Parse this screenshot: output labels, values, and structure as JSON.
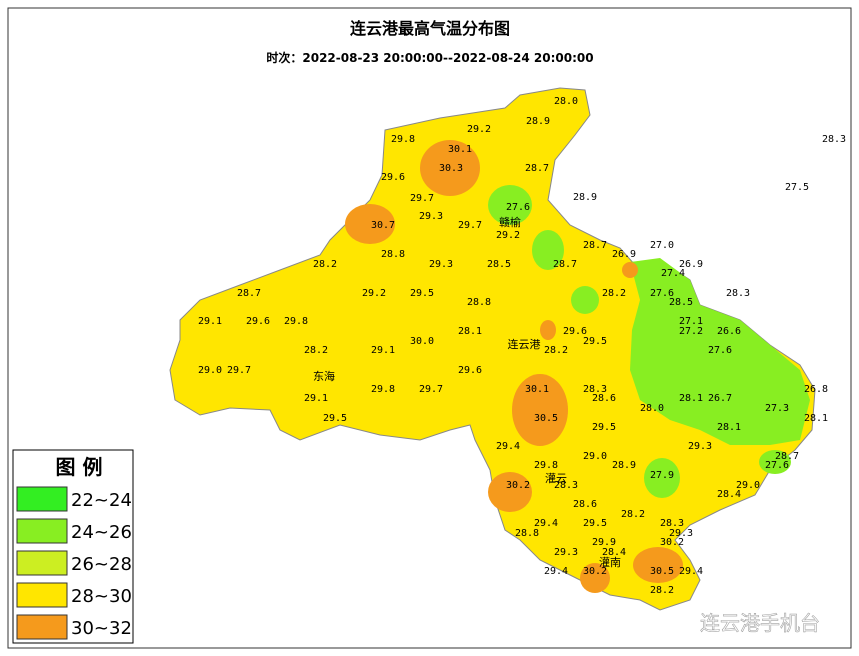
{
  "header": {
    "title": "连云港最高气温分布图",
    "subtitle": "时次：2022-08-23 20:00:00--2022-08-24 20:00:00"
  },
  "legend": {
    "title": "图 例",
    "items": [
      {
        "label": "22~24",
        "color": "#33ee22"
      },
      {
        "label": "24~26",
        "color": "#88ee22"
      },
      {
        "label": "26~28",
        "color": "#ccee22"
      },
      {
        "label": "28~30",
        "color": "#ffe600"
      },
      {
        "label": "30~32",
        "color": "#f59a1c"
      }
    ]
  },
  "places": [
    "赣榆",
    "连云港",
    "东海",
    "灌云",
    "灌南"
  ],
  "stations": [
    "28.0",
    "28.9",
    "29.2",
    "29.8",
    "30.1",
    "30.3",
    "28.7",
    "29.6",
    "27.5",
    "28.9",
    "29.7",
    "27.6",
    "29.3",
    "30.7",
    "29.7",
    "29.2",
    "28.7",
    "27.0",
    "28.8",
    "26.9",
    "29.3",
    "28.5",
    "28.7",
    "28.2",
    "26.9",
    "27.4",
    "28.7",
    "29.2",
    "29.5",
    "28.8",
    "28.2",
    "27.6",
    "28.3",
    "28.5",
    "29.1",
    "29.6",
    "29.8",
    "27.1",
    "27.2",
    "26.6",
    "28.1",
    "29.6",
    "29.5",
    "28.2",
    "29.1",
    "30.0",
    "28.2",
    "27.6",
    "29.0",
    "29.7",
    "29.6",
    "30.1",
    "28.3",
    "29.8",
    "29.7",
    "26.8",
    "29.1",
    "28.6",
    "28.1",
    "26.7",
    "30.5",
    "28.0",
    "27.3",
    "28.1",
    "29.5",
    "29.5",
    "28.1",
    "29.4",
    "29.3",
    "29.0",
    "28.7",
    "29.8",
    "28.9",
    "27.6",
    "27.9",
    "30.2",
    "28.3",
    "29.0",
    "28.4",
    "28.6",
    "28.2",
    "29.4",
    "29.5",
    "28.3",
    "28.8",
    "29.3",
    "29.9",
    "30.2",
    "29.3",
    "28.4",
    "29.4",
    "30.2",
    "30.5",
    "29.4",
    "28.2",
    "28.3"
  ],
  "watermark": "连云港手机台"
}
